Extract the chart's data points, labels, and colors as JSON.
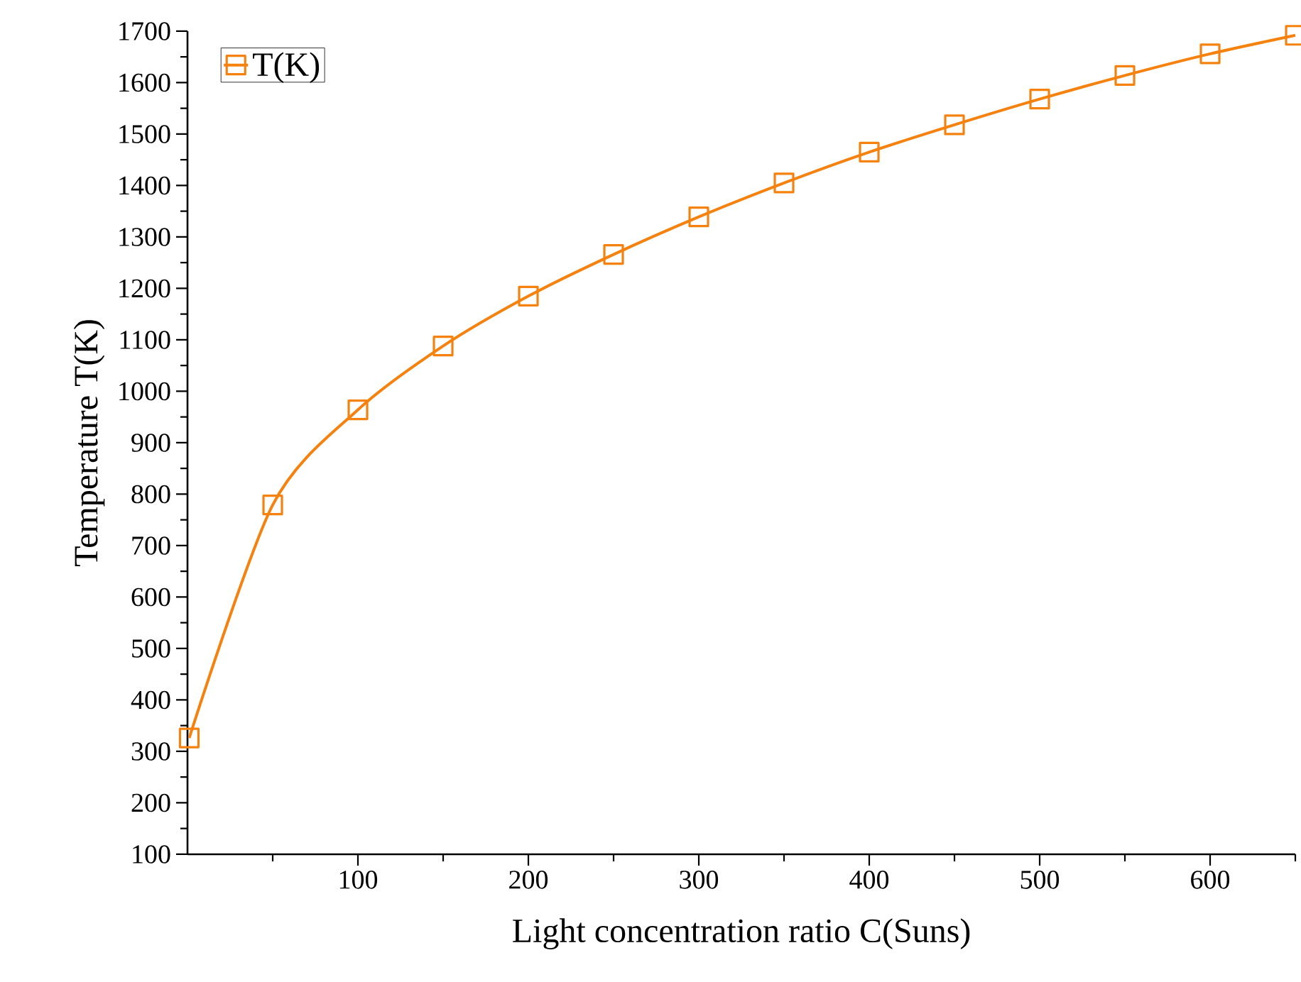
{
  "chart_data": {
    "type": "line",
    "xlabel": "Light concentration ratio C(Suns)",
    "ylabel": "Temperature T(K)",
    "xlim": [
      0,
      650
    ],
    "ylim": [
      100,
      1700
    ],
    "xticks": [
      100,
      200,
      300,
      400,
      500,
      600
    ],
    "yticks": [
      100,
      200,
      300,
      400,
      500,
      600,
      700,
      800,
      900,
      1000,
      1100,
      1200,
      1300,
      1400,
      1500,
      1600,
      1700
    ],
    "series": [
      {
        "name": "T(K)",
        "color": "#f5820f",
        "x": [
          1,
          50,
          100,
          150,
          200,
          250,
          300,
          350,
          400,
          450,
          500,
          550,
          600,
          650
        ],
        "values": [
          326,
          779,
          964,
          1088,
          1185,
          1266,
          1339,
          1405,
          1465,
          1518,
          1568,
          1614,
          1656,
          1692
        ]
      }
    ],
    "marker": "square",
    "line_style": "solid",
    "legend": "top left",
    "grid": false
  }
}
